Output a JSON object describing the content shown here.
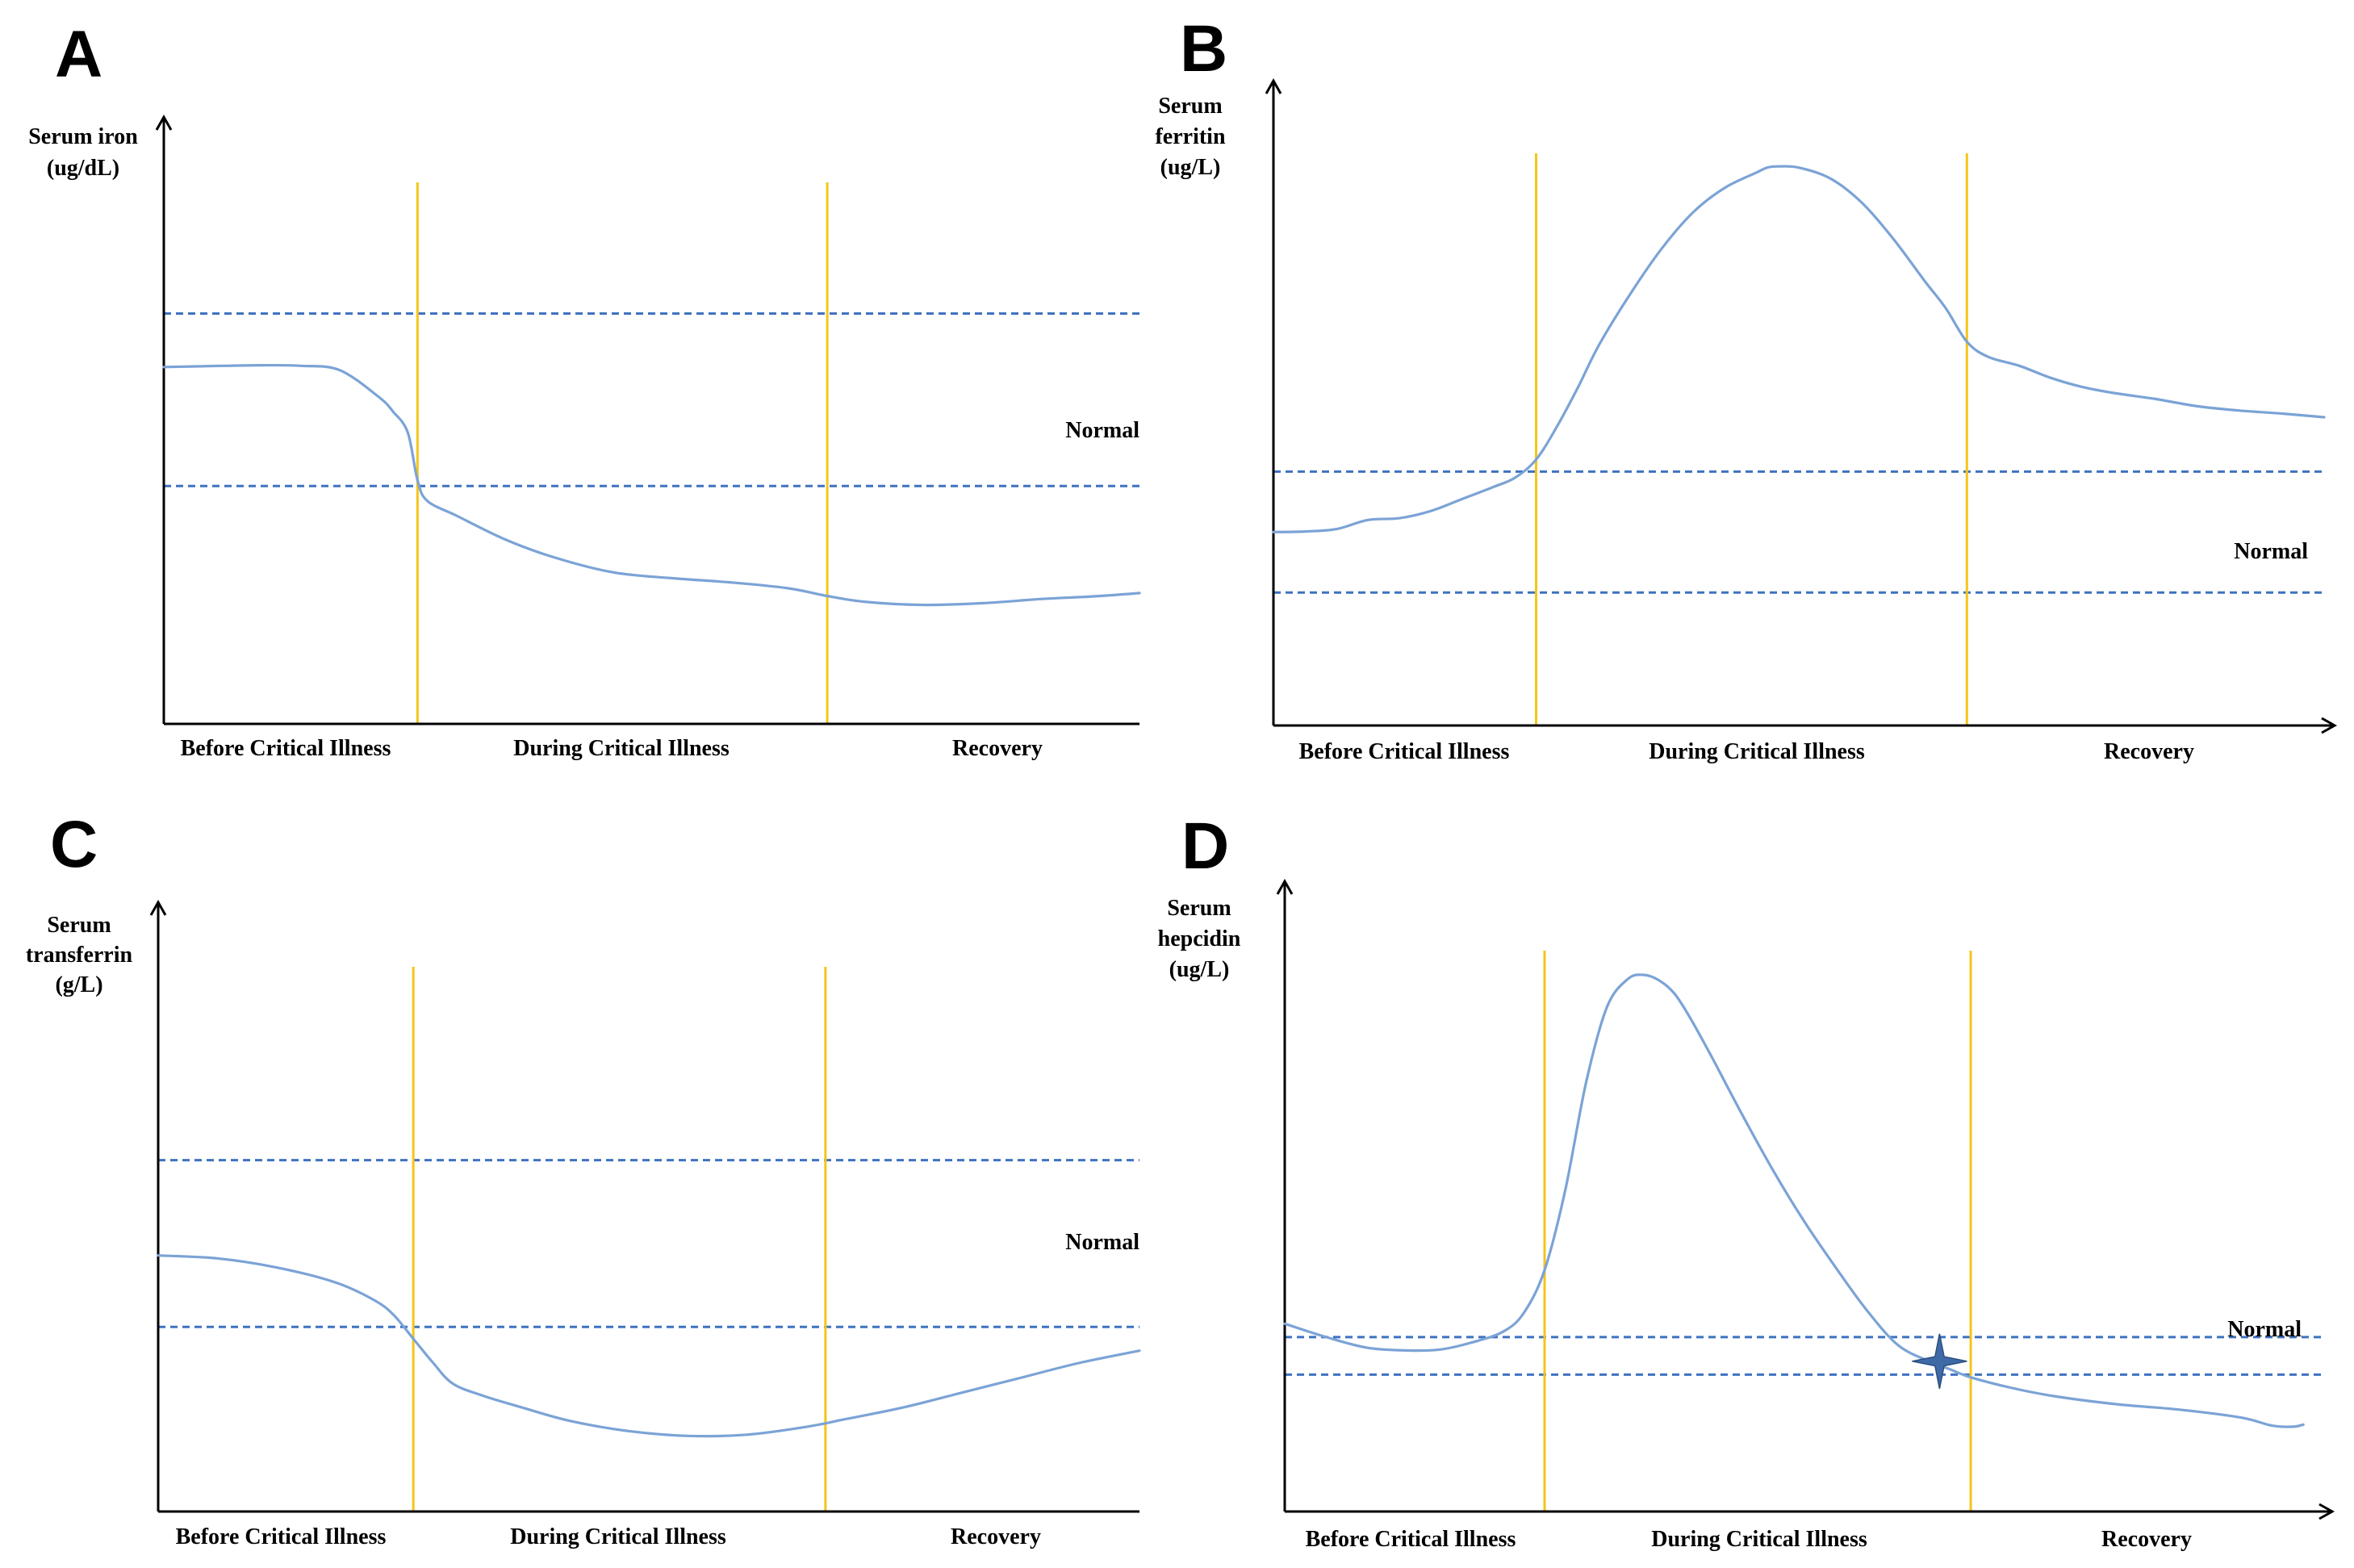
{
  "figure": {
    "colors": {
      "curve": "#7ba3d6",
      "phase_divider": "#f5c518",
      "normal_band": "#3f72c0",
      "axis": "#000000",
      "marker": "#3e6aa6"
    }
  },
  "chart_data": [
    {
      "panel": "A",
      "type": "line",
      "ylabel": [
        "Serum iron",
        "(ug/dL)"
      ],
      "xlabel_regions": [
        "Before Critical Illness",
        "During Critical Illness",
        "Recovery"
      ],
      "x_axis_arrow": false,
      "normal_label": "Normal",
      "xlim": [
        0,
        100
      ],
      "ylim": [
        0,
        100
      ],
      "phase_boundaries": [
        26,
        68
      ],
      "normal_range": [
        40,
        69
      ],
      "series": [
        {
          "name": "Serum iron",
          "x": [
            0,
            6,
            10,
            14,
            18,
            22,
            23.5,
            25,
            26,
            27,
            30,
            35,
            40,
            46,
            52,
            58,
            64,
            68,
            72,
            78,
            84,
            90,
            96,
            100
          ],
          "values": [
            60,
            60.2,
            60.3,
            60.2,
            59.5,
            55,
            52.5,
            49,
            41,
            37.5,
            35,
            31,
            28,
            25.5,
            24.5,
            23.8,
            22.8,
            21.5,
            20.5,
            20,
            20.3,
            21,
            21.5,
            22
          ]
        }
      ]
    },
    {
      "panel": "B",
      "type": "line",
      "ylabel": [
        "Serum",
        "ferritin",
        "(ug/L)"
      ],
      "xlabel_regions": [
        "Before Critical Illness",
        "During Critical Illness",
        "Recovery"
      ],
      "x_axis_arrow": true,
      "normal_label": "Normal",
      "xlim": [
        0,
        100
      ],
      "ylim": [
        0,
        100
      ],
      "phase_boundaries": [
        25,
        66
      ],
      "normal_range": [
        22,
        42
      ],
      "series": [
        {
          "name": "Serum ferritin",
          "x": [
            0,
            3,
            6,
            9,
            12,
            15,
            18,
            21,
            23,
            25,
            27,
            29,
            31,
            34,
            37,
            40,
            43,
            46,
            47,
            48,
            50,
            53,
            56,
            59,
            62,
            64,
            66,
            68,
            71,
            74,
            77,
            80,
            84,
            88,
            92,
            96,
            100
          ],
          "values": [
            32,
            32.1,
            32.5,
            34,
            34.3,
            35.5,
            37.5,
            39.5,
            41,
            44,
            49.5,
            56,
            63,
            71.5,
            79,
            85,
            89,
            91.5,
            92.3,
            92.5,
            92.3,
            90.5,
            86.5,
            80.5,
            73.5,
            69,
            63.5,
            61,
            59.5,
            57.5,
            56,
            55,
            54,
            52.8,
            52.1,
            51.6,
            51
          ]
        }
      ]
    },
    {
      "panel": "C",
      "type": "line",
      "ylabel": [
        "Serum",
        "transferrin",
        "(g/L)"
      ],
      "xlabel_regions": [
        "Before Critical Illness",
        "During Critical Illness",
        "Recovery"
      ],
      "x_axis_arrow": false,
      "normal_label": "Normal",
      "xlim": [
        0,
        100
      ],
      "ylim": [
        0,
        100
      ],
      "phase_boundaries": [
        26,
        68
      ],
      "normal_range": [
        31,
        59
      ],
      "series": [
        {
          "name": "Serum transferrin",
          "x": [
            0,
            6,
            12,
            18,
            22,
            24,
            26,
            28,
            30,
            33,
            37,
            42,
            48,
            54,
            60,
            66,
            70,
            76,
            82,
            88,
            94,
            100
          ],
          "values": [
            43,
            42.5,
            41,
            38.5,
            35.5,
            33,
            29,
            25,
            21.5,
            19.5,
            17.5,
            15.2,
            13.5,
            12.7,
            12.9,
            14.2,
            15.5,
            17.5,
            20,
            22.5,
            25,
            27
          ]
        }
      ]
    },
    {
      "panel": "D",
      "type": "line",
      "ylabel": [
        "Serum",
        "hepcidin",
        "(ug/L)"
      ],
      "xlabel_regions": [
        "Before Critical Illness",
        "During Critical Illness",
        "Recovery"
      ],
      "x_axis_arrow": true,
      "normal_label": "Normal",
      "xlim": [
        0,
        100
      ],
      "ylim": [
        0,
        100
      ],
      "phase_boundaries": [
        25,
        66
      ],
      "normal_range": [
        25.5,
        32.5
      ],
      "series": [
        {
          "name": "Serum hepcidin",
          "x": [
            0,
            4,
            8,
            12,
            15,
            18,
            21,
            23,
            25,
            27,
            29,
            31,
            33,
            34.5,
            36,
            37.5,
            39,
            41,
            44,
            47,
            50,
            53,
            56,
            59,
            62,
            64,
            66,
            70,
            74,
            80,
            86,
            92,
            95,
            97,
            98
          ],
          "values": [
            35,
            32.5,
            30.5,
            30,
            30.2,
            31.5,
            33.5,
            37,
            45,
            60,
            80,
            94,
            99.2,
            100,
            99,
            96.5,
            92,
            85,
            74,
            63.5,
            54,
            45.5,
            37.5,
            31,
            28,
            26.5,
            25,
            23,
            21.5,
            20,
            19,
            17.5,
            16,
            15.8,
            16.2
          ]
        }
      ],
      "marker": {
        "type": "four-point-star",
        "x": 63,
        "y": 28
      }
    }
  ]
}
